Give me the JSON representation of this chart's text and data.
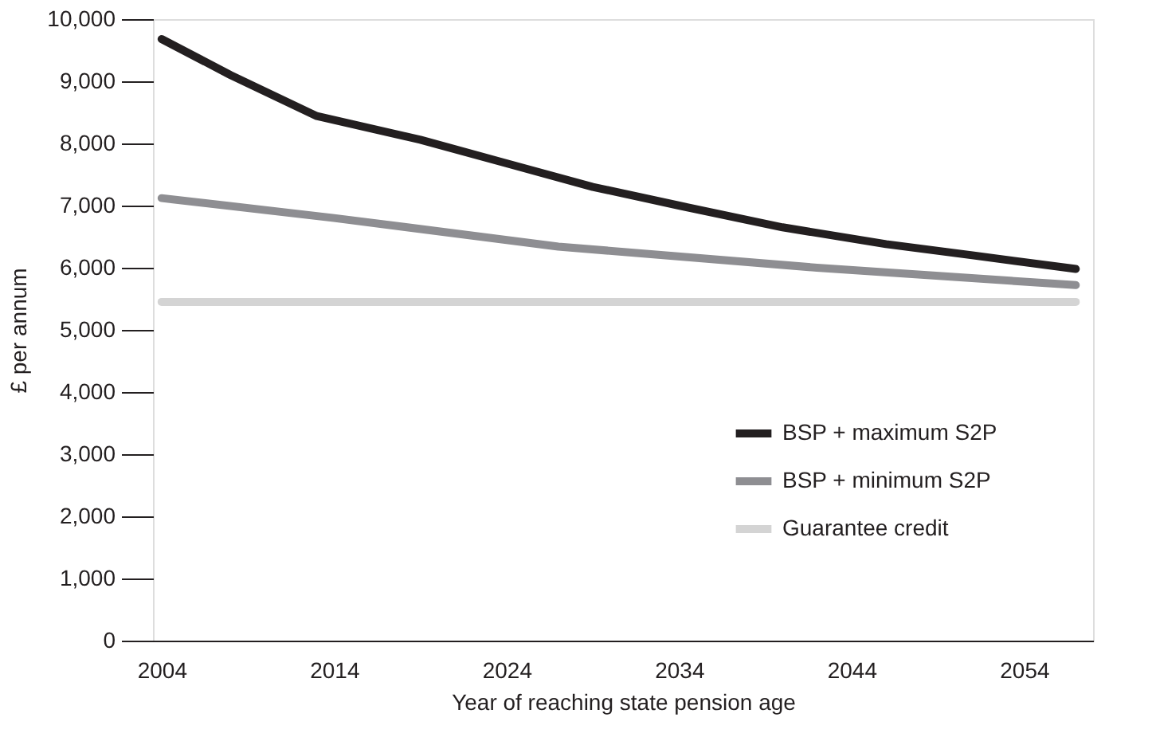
{
  "chart_data": {
    "type": "line",
    "xlabel": "Year of reaching state pension age",
    "ylabel": "£ per annum",
    "xlim": [
      2003.5,
      2058
    ],
    "xticks": [
      2004,
      2014,
      2024,
      2034,
      2044,
      2054
    ],
    "ylim": [
      0,
      10000
    ],
    "yticks": [
      {
        "value": 0,
        "label": "0"
      },
      {
        "value": 1000,
        "label": "1,000"
      },
      {
        "value": 2000,
        "label": "2,000"
      },
      {
        "value": 3000,
        "label": "3,000"
      },
      {
        "value": 4000,
        "label": "4,000"
      },
      {
        "value": 5000,
        "label": "5,000"
      },
      {
        "value": 6000,
        "label": "6,000"
      },
      {
        "value": 7000,
        "label": "7,000"
      },
      {
        "value": 8000,
        "label": "8,000"
      },
      {
        "value": 9000,
        "label": "9,000"
      },
      {
        "value": 10000,
        "label": "10,000"
      }
    ],
    "grid": false,
    "legend": "bottom right",
    "marker": "none",
    "line_style": "solid",
    "series": [
      {
        "name": "BSP + maximum S2P",
        "color": "#231f20",
        "x": [
          2004,
          2008,
          2013,
          2019,
          2024,
          2029,
          2034,
          2040,
          2046,
          2051,
          2057
        ],
        "values": [
          9680,
          9100,
          8440,
          8060,
          7680,
          7300,
          7000,
          6650,
          6380,
          6200,
          5980
        ]
      },
      {
        "name": "BSP + minimum S2P",
        "color": "#8e8e92",
        "x": [
          2004,
          2014,
          2027,
          2042,
          2057
        ],
        "values": [
          7120,
          6800,
          6340,
          6000,
          5720
        ]
      },
      {
        "name": "Guarantee credit",
        "color": "#d4d4d4",
        "x": [
          2004,
          2057
        ],
        "values": [
          5450,
          5450
        ]
      }
    ]
  }
}
